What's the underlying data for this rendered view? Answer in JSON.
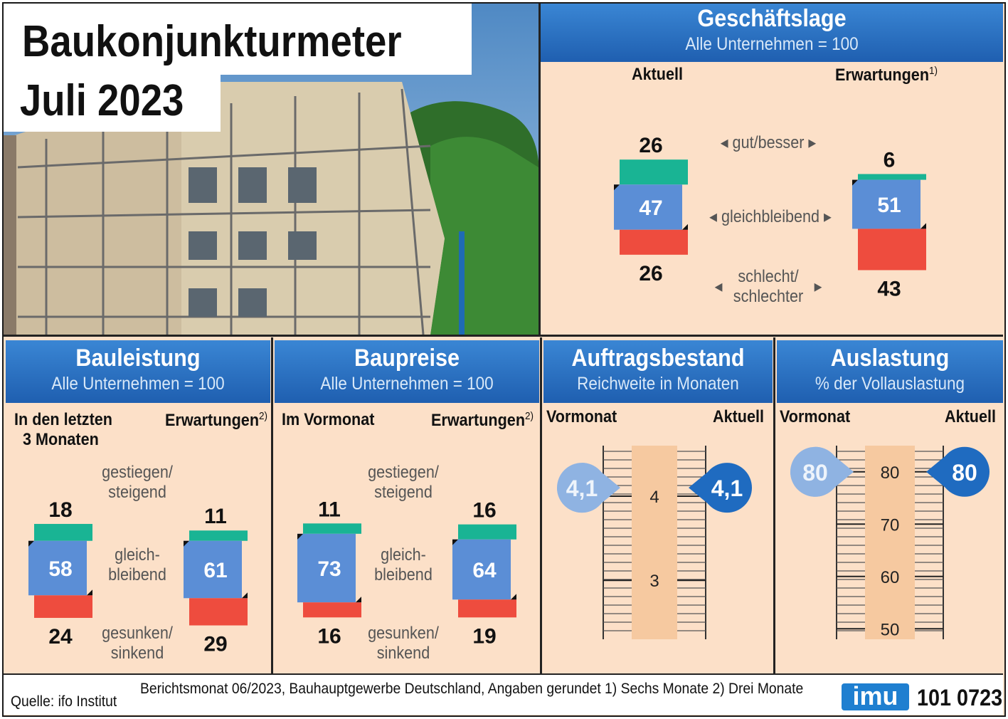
{
  "title": {
    "line1": "Baukonjunkturmeter",
    "line2": "Juli 2023"
  },
  "colors": {
    "header_blue": "#2b74c6",
    "bar_blue": "#5b8ed6",
    "green": "#19b494",
    "red": "#ee4c3e",
    "panel": "#fce0c8"
  },
  "chart_data": [
    {
      "type": "bar",
      "title": "Geschäftslage",
      "subtitle": "Alle Unternehmen = 100",
      "categories": [
        "gut/besser",
        "gleichbleibend",
        "schlecht/ schlechter"
      ],
      "series": [
        {
          "name": "Aktuell",
          "values": [
            26,
            47,
            26
          ]
        },
        {
          "name": "Erwartungen",
          "values": [
            6,
            51,
            43
          ]
        }
      ]
    },
    {
      "type": "bar",
      "title": "Bauleistung",
      "subtitle": "Alle Unternehmen = 100",
      "categories": [
        "gestiegen/ steigend",
        "gleich- bleibend",
        "gesunken/ sinkend"
      ],
      "series": [
        {
          "name": "In den letzten 3 Monaten",
          "values": [
            18,
            58,
            24
          ]
        },
        {
          "name": "Erwartungen",
          "values": [
            11,
            61,
            29
          ]
        }
      ]
    },
    {
      "type": "bar",
      "title": "Baupreise",
      "subtitle": "Alle Unternehmen = 100",
      "categories": [
        "gestiegen/ steigend",
        "gleich- bleibend",
        "gesunken/ sinkend"
      ],
      "series": [
        {
          "name": "Im Vormonat",
          "values": [
            11,
            73,
            16
          ]
        },
        {
          "name": "Erwartungen",
          "values": [
            16,
            64,
            19
          ]
        }
      ]
    },
    {
      "type": "scatter",
      "title": "Auftragsbestand",
      "subtitle": "Reichweite in Monaten",
      "ticks": [
        "4",
        "3"
      ],
      "ylim": [
        2.3,
        4.6
      ],
      "series": [
        {
          "name": "Vormonat",
          "values": [
            4.1
          ],
          "label": "4,1"
        },
        {
          "name": "Aktuell",
          "values": [
            4.1
          ],
          "label": "4,1"
        }
      ]
    },
    {
      "type": "scatter",
      "title": "Auslastung",
      "subtitle": "% der Vollauslastung",
      "ticks": [
        "80",
        "70",
        "60",
        "50"
      ],
      "ylim": [
        48,
        85
      ],
      "series": [
        {
          "name": "Vormonat",
          "values": [
            80
          ],
          "label": "80"
        },
        {
          "name": "Aktuell",
          "values": [
            80
          ],
          "label": "80"
        }
      ]
    }
  ],
  "labels": {
    "gesch_left": "Aktuell",
    "gesch_right": "Erwartungen",
    "gesch_right_sup": "1)",
    "bauleistung_left": "In den letzten",
    "bauleistung_left2": "3 Monaten",
    "bauleistung_right": "Erwartungen",
    "bauleistung_right_sup": "2)",
    "baupreise_left": "Im Vormonat",
    "baupreise_right": "Erwartungen",
    "baupreise_right_sup": "2)",
    "auftrag_left": "Vormonat",
    "auftrag_right": "Aktuell",
    "auslast_left": "Vormonat",
    "auslast_right": "Aktuell",
    "gut": "gut/besser",
    "gleich": "gleichbleibend",
    "schlecht1": "schlecht/",
    "schlecht2": "schlechter",
    "gestiegen1": "gestiegen/",
    "gestiegen2": "steigend",
    "gleich1": "gleich-",
    "gleich2": "bleibend",
    "gesunken1": "gesunken/",
    "gesunken2": "sinkend"
  },
  "footer": {
    "source": "Quelle: ifo Institut",
    "note": "Berichtsmonat 06/2023, Bauhauptgewerbe Deutschland, Angaben gerundet    1) Sechs Monate    2) Drei Monate",
    "logo": "imu",
    "code": "101 0723"
  }
}
